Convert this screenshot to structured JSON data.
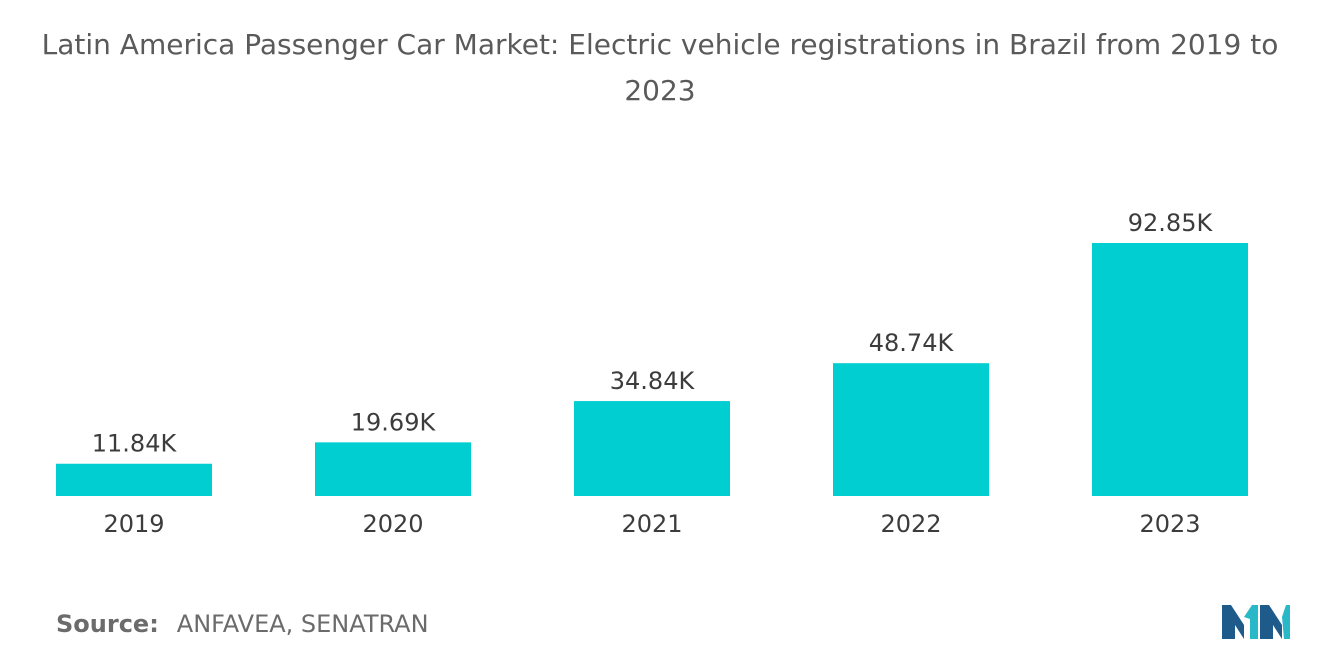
{
  "chart_data": {
    "type": "bar",
    "title": "Latin America Passenger Car Market: Electric vehicle registrations in Brazil from 2019 to 2023",
    "categories": [
      "2019",
      "2020",
      "2021",
      "2022",
      "2023"
    ],
    "values": [
      11.84,
      19.69,
      34.84,
      48.74,
      92.85
    ],
    "value_labels": [
      "11.84K",
      "19.69K",
      "34.84K",
      "48.74K",
      "92.85K"
    ],
    "unit": "K",
    "xlabel": "",
    "ylabel": "",
    "ylim": [
      0,
      100
    ],
    "grid": false,
    "legend": "none",
    "bar_color": "#00ced1"
  },
  "source": {
    "label": "Source:",
    "text": "ANFAVEA, SENATRAN"
  },
  "logo": {
    "icon": "mordor-intelligence-logo-icon",
    "colors": [
      "#1e5a8a",
      "#28b8c8"
    ]
  }
}
